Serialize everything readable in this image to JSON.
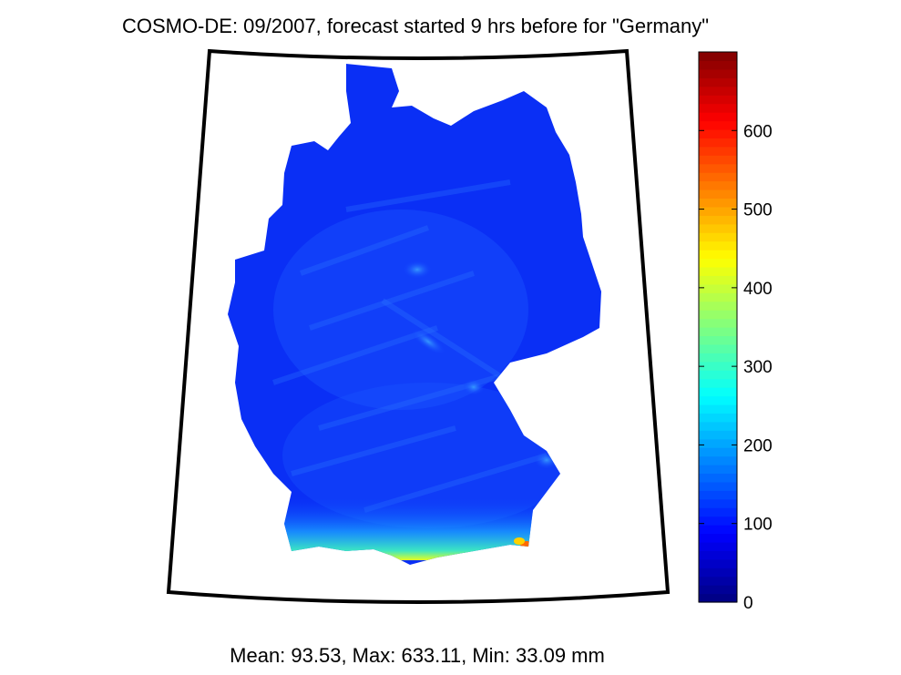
{
  "title": "COSMO-DE: 09/2007, forecast started 9 hrs before for \"Germany\"",
  "stats_text": "Mean:  93.53, Max: 633.11, Min:  33.09 mm",
  "chart_data": {
    "type": "heatmap",
    "title": "COSMO-DE: 09/2007, forecast started 9 hrs before for \"Germany\"",
    "region": "Germany",
    "month": "09/2007",
    "forecast_lead": "9 hrs",
    "units": "mm",
    "colormap": "jet",
    "clim": [
      0,
      700
    ],
    "colorbar_ticks": [
      0,
      100,
      200,
      300,
      400,
      500,
      600
    ],
    "colorbar_tick_labels": [
      "0",
      "100",
      "200",
      "300",
      "400",
      "500",
      "600"
    ],
    "statistics": {
      "mean": 93.53,
      "max": 633.11,
      "min": 33.09
    },
    "typical_value": 90
  }
}
